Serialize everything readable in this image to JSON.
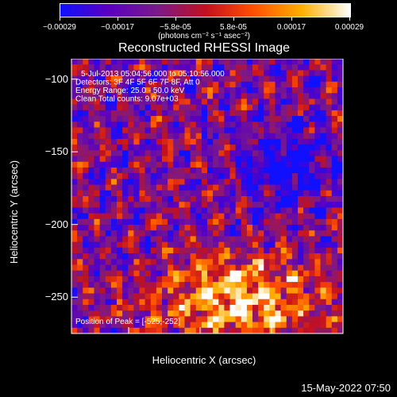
{
  "colorbar": {
    "ticks": [
      "-0.00029",
      "-0.00017",
      "-5.8e-05",
      "5.8e-05",
      "0.00017",
      "0.00029"
    ],
    "unit_label": "(photons cm⁻² s⁻¹ asec⁻²)",
    "colors": [
      "#1010ff",
      "#5a00c0",
      "#7a1a8a",
      "#c21020",
      "#ff5000",
      "#ffb000",
      "#ffffff"
    ]
  },
  "chart_data": {
    "type": "heatmap",
    "title": "Reconstructed RHESSI Image",
    "xlabel": "Heliocentric X (arcsec)",
    "ylabel": "Heliocentric Y (arcsec)",
    "xlim": [
      -640,
      -450
    ],
    "ylim": [
      -275,
      -86
    ],
    "xticks": [
      -600,
      -550,
      -500,
      -450
    ],
    "yticks": [
      -100,
      -150,
      -200,
      -250
    ],
    "xtick_labels": [
      "−600",
      "−550",
      "−500",
      "−450"
    ],
    "ytick_labels": [
      "−100",
      "−150",
      "−200",
      "−250"
    ],
    "grid_cells": 48,
    "vmin": -0.00029,
    "vmax": 0.00029,
    "annotations": [
      "5-Jul-2013 05:04:56.000 to 05:10:56.000",
      "Detectors: 3F 4F 5F 6F 7F 8F, Att 0",
      "Energy Range: 25.0 - 50.0 keV",
      "Clean     Total counts: 9.07e+03"
    ],
    "peak_label": "Position of Peak = [-525,-252]",
    "peak": [
      -525,
      -252
    ]
  },
  "footer": {
    "timestamp": "15-May-2022 07:50"
  }
}
